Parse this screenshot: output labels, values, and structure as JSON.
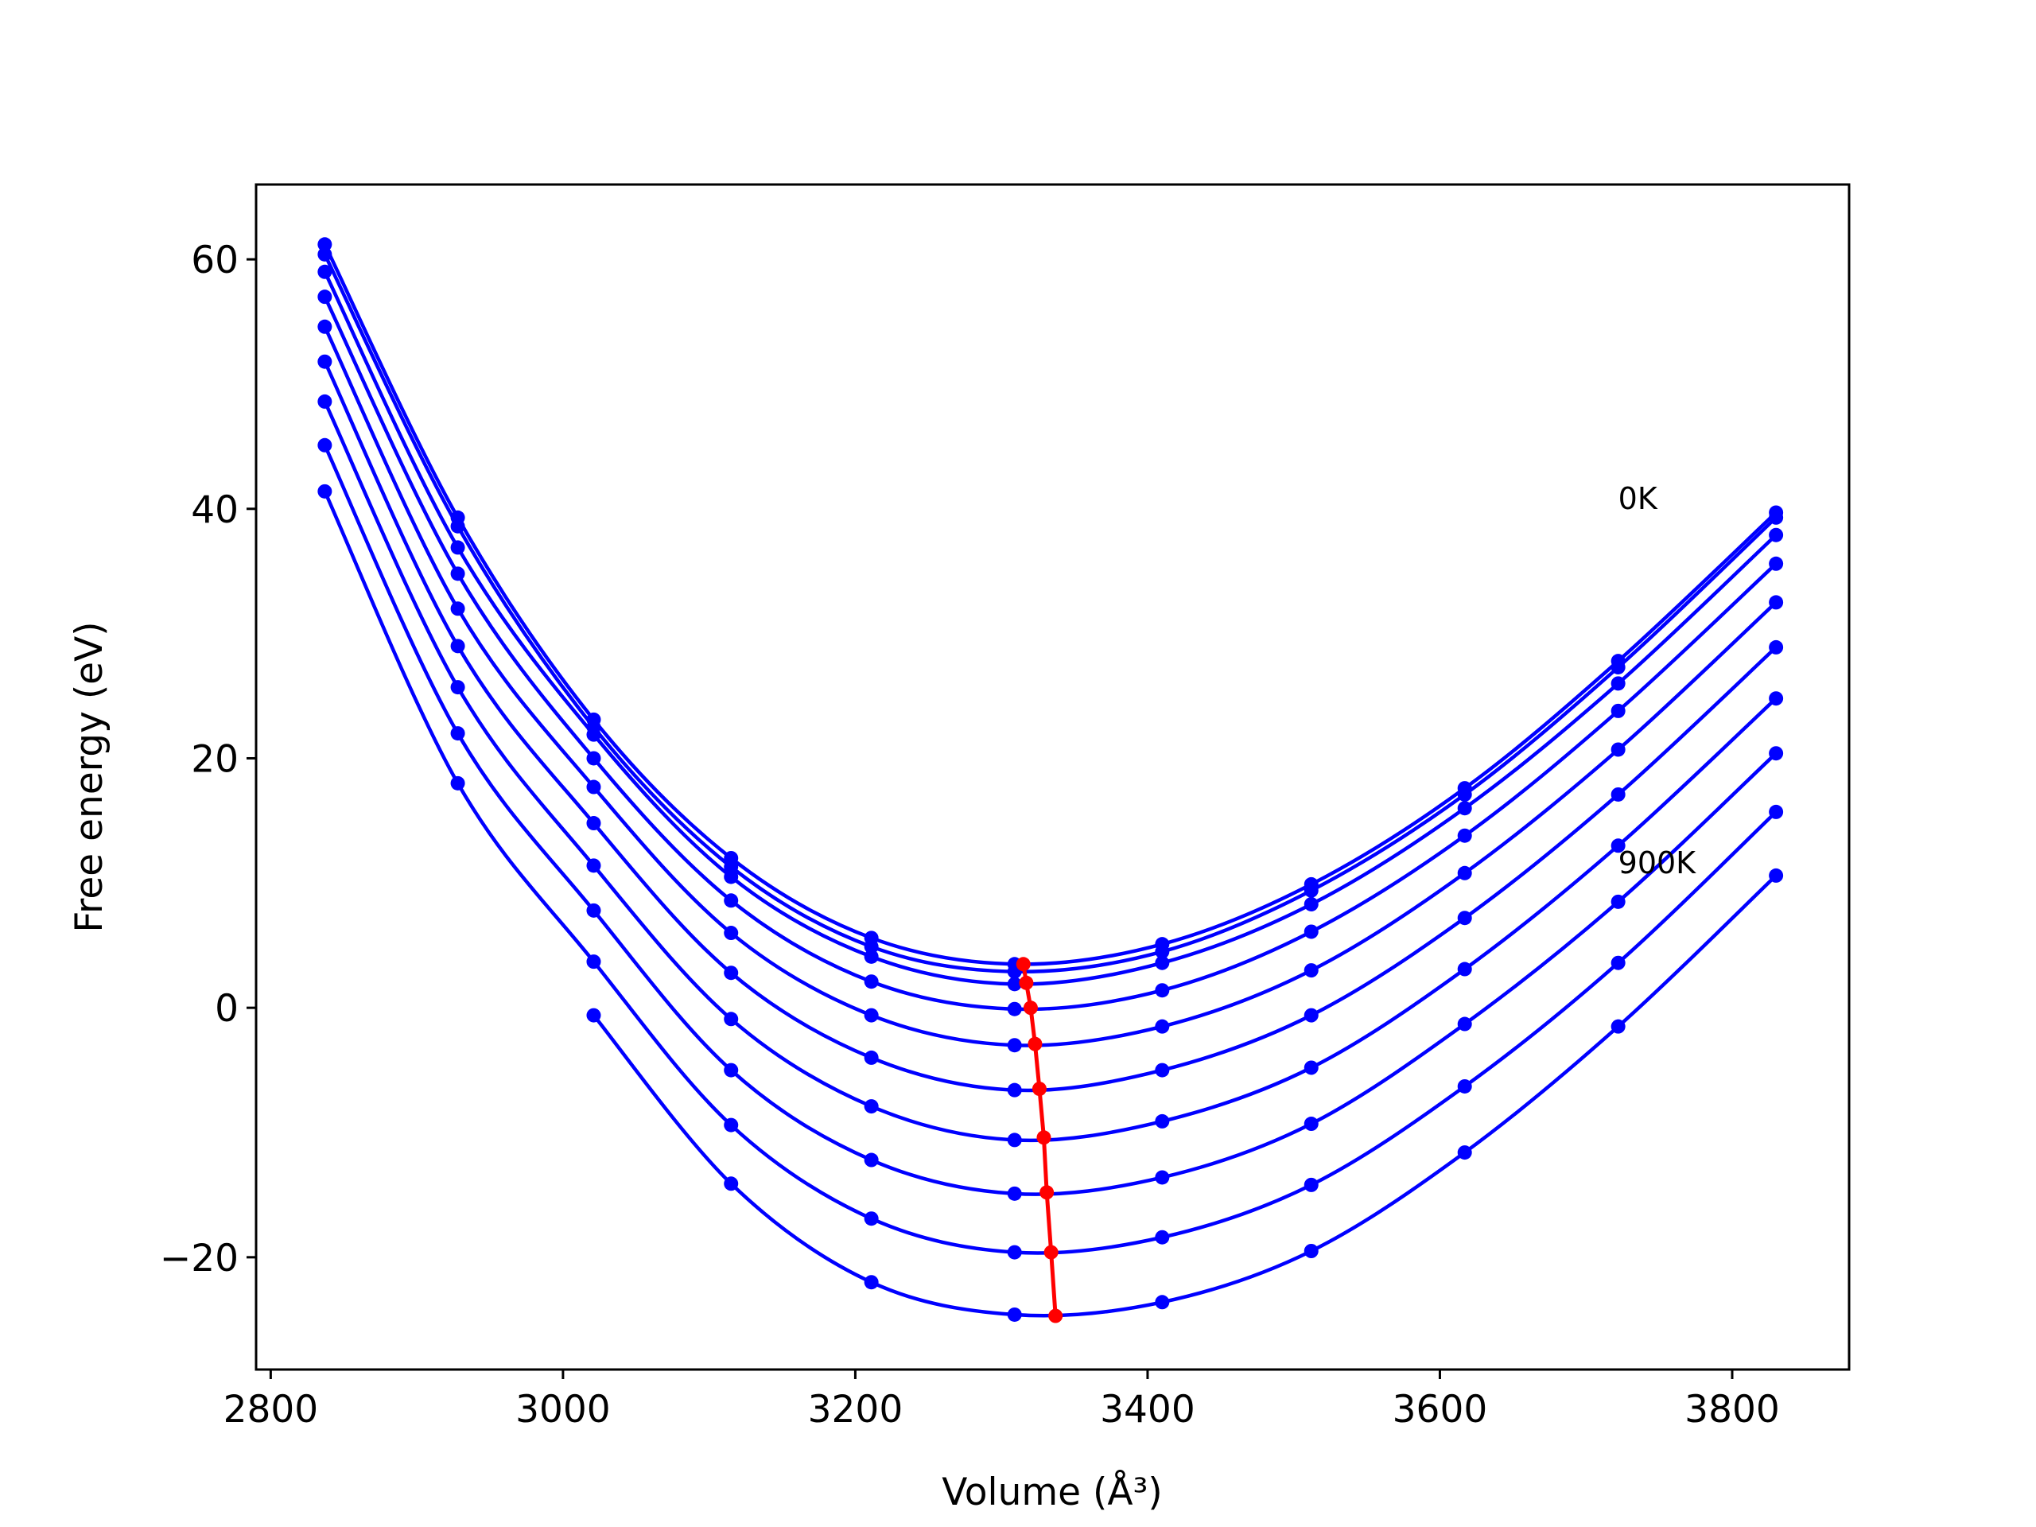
{
  "chart_data": {
    "type": "line",
    "title": "",
    "xlabel": "Volume (Å³)",
    "ylabel": "Free energy (eV)",
    "xlim": [
      2790,
      3880
    ],
    "ylim": [
      -29,
      66
    ],
    "xticks": [
      "2800",
      "3000",
      "3200",
      "3400",
      "3600",
      "3800"
    ],
    "yticks": [
      "−20",
      "0",
      "20",
      "40",
      "60"
    ],
    "grid": false,
    "legend": "none",
    "colors": {
      "curves": "#0000ff",
      "minima": "#ff0000",
      "axes": "#000000"
    },
    "annotations": [
      {
        "text": "0K",
        "x": 3722,
        "y": 40.0
      },
      {
        "text": "900K",
        "x": 3722,
        "y": 10.8
      }
    ],
    "volumes": [
      2837,
      2928,
      3021,
      3115,
      3211,
      3309,
      3410,
      3512,
      3617,
      3722,
      3830
    ],
    "series": [
      {
        "values": [
          61.2,
          39.3,
          23.1,
          12.0,
          5.6,
          3.5,
          5.1,
          9.9,
          17.6,
          27.8,
          39.7
        ]
      },
      {
        "values": [
          60.4,
          38.6,
          22.5,
          11.3,
          4.9,
          2.9,
          4.5,
          9.4,
          17.1,
          27.3,
          39.3
        ]
      },
      {
        "values": [
          59.0,
          36.9,
          21.9,
          10.5,
          4.1,
          1.9,
          3.6,
          8.3,
          16.0,
          26.0,
          37.9
        ]
      },
      {
        "values": [
          57.0,
          34.8,
          20.0,
          8.6,
          2.1,
          -0.1,
          1.4,
          6.1,
          13.8,
          23.8,
          35.6
        ]
      },
      {
        "values": [
          54.6,
          32.0,
          17.7,
          6.0,
          -0.6,
          -3.0,
          -1.5,
          3.0,
          10.8,
          20.7,
          32.5
        ]
      },
      {
        "values": [
          51.8,
          29.0,
          14.8,
          2.8,
          -4.0,
          -6.6,
          -5.0,
          -0.6,
          7.2,
          17.1,
          28.9
        ]
      },
      {
        "values": [
          48.6,
          25.7,
          11.4,
          -0.9,
          -7.9,
          -10.6,
          -9.1,
          -4.8,
          3.1,
          13.0,
          24.8
        ]
      },
      {
        "values": [
          45.1,
          22.0,
          7.8,
          -5.0,
          -12.2,
          -14.9,
          -13.6,
          -9.3,
          -1.3,
          8.5,
          20.4
        ]
      },
      {
        "values": [
          41.4,
          18.0,
          3.7,
          -9.4,
          -16.9,
          -19.6,
          -18.4,
          -14.2,
          -6.3,
          3.6,
          15.7
        ]
      },
      {
        "values": [
          null,
          null,
          -0.6,
          -14.1,
          -22.0,
          -24.6,
          -23.6,
          -19.5,
          -11.6,
          -1.5,
          10.6
        ]
      }
    ],
    "minima": {
      "x": [
        3315,
        3317,
        3320,
        3323,
        3326,
        3329,
        3331,
        3334,
        3337
      ],
      "y": [
        3.5,
        2.0,
        0.0,
        -2.9,
        -6.5,
        -10.4,
        -14.8,
        -19.6,
        -24.7
      ]
    }
  }
}
